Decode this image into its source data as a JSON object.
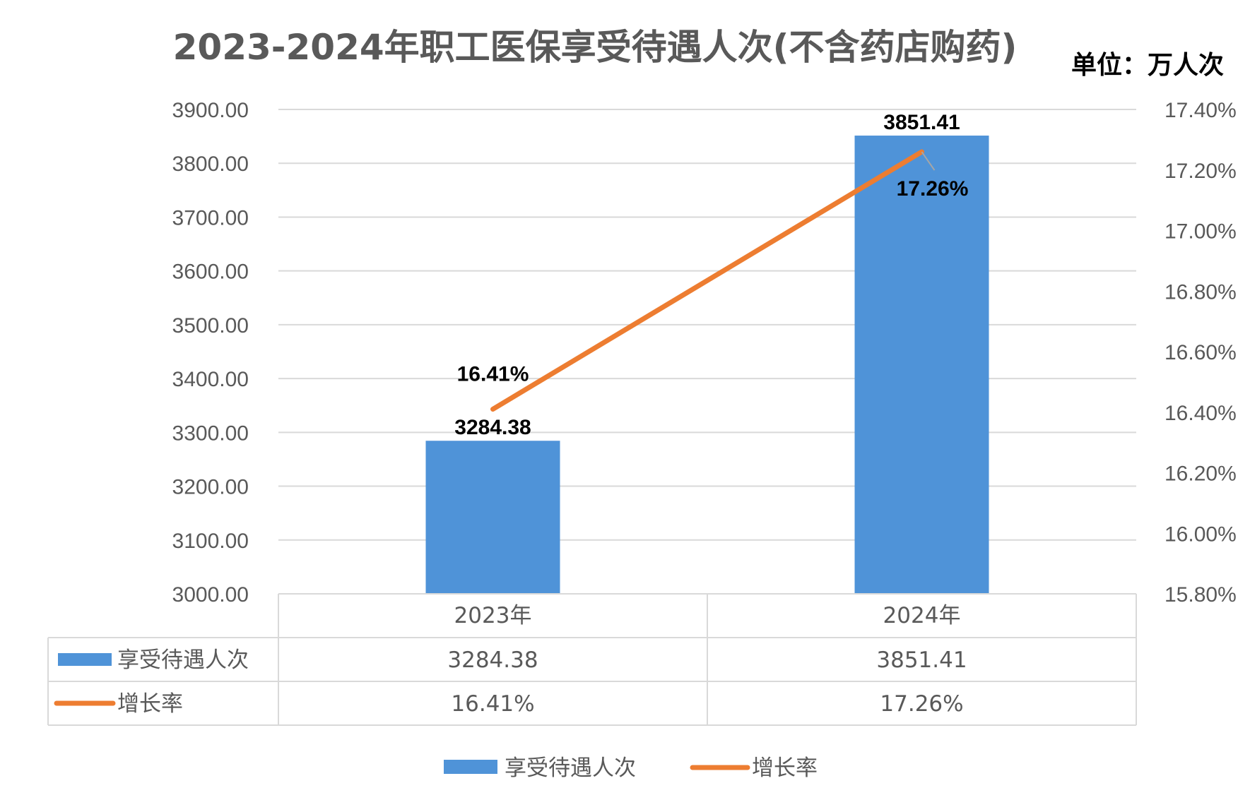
{
  "chart_data": {
    "type": "bar",
    "title": "2023-2024年职工医保享受待遇人次(不含药店购药)",
    "unit_label": "单位：万人次",
    "categories": [
      "2023年",
      "2024年"
    ],
    "y_left": {
      "range": [
        3000,
        3900
      ],
      "ticks": [
        "3000.00",
        "3100.00",
        "3200.00",
        "3300.00",
        "3400.00",
        "3500.00",
        "3600.00",
        "3700.00",
        "3800.00",
        "3900.00"
      ]
    },
    "y_right": {
      "range": [
        15.8,
        17.4
      ],
      "ticks": [
        "15.80%",
        "16.00%",
        "16.20%",
        "16.40%",
        "16.60%",
        "16.80%",
        "17.00%",
        "17.20%",
        "17.40%"
      ]
    },
    "series": [
      {
        "name": "享受待遇人次",
        "kind": "bar",
        "axis": "left",
        "color": "#4F93D8",
        "values": [
          3284.38,
          3851.41
        ],
        "labels": [
          "3284.38",
          "3851.41"
        ]
      },
      {
        "name": "增长率",
        "kind": "line",
        "axis": "right",
        "color": "#ED7D31",
        "values": [
          16.41,
          17.26
        ],
        "labels": [
          "16.41%",
          "17.26%"
        ]
      }
    ],
    "grid": true,
    "data_table": true,
    "legend_position": "bottom"
  }
}
